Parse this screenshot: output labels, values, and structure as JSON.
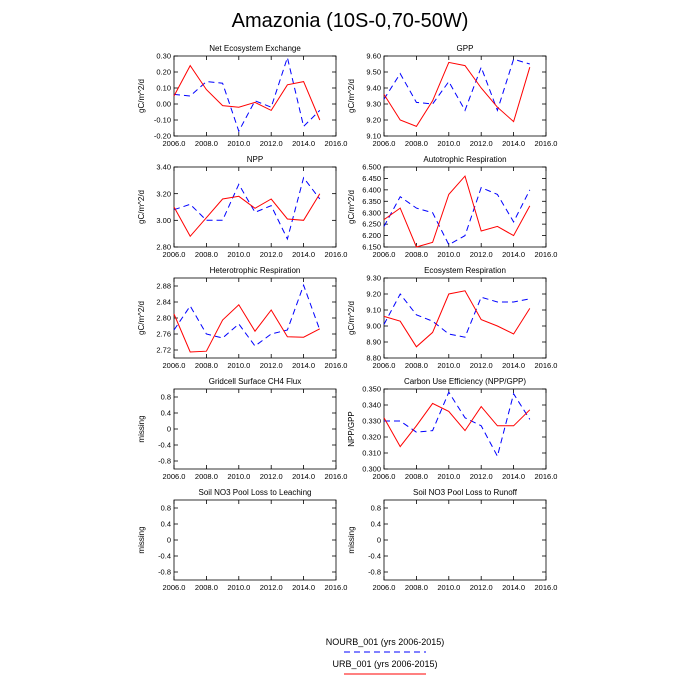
{
  "figure": {
    "title": "Amazonia (10S-0,70-50W)"
  },
  "legend": {
    "entries": [
      {
        "label": "NOURB_001 (yrs 2006-2015)",
        "color": "#0000ff",
        "dash": "dashed"
      },
      {
        "label": "URB_001 (yrs 2006-2015)",
        "color": "#ff0000",
        "dash": "solid"
      }
    ]
  },
  "chart_data": [
    {
      "type": "line",
      "title": "Net Ecosystem Exchange",
      "ylabel": "gC/m^2/d",
      "xlim": [
        2006,
        2016
      ],
      "ylim": [
        -0.2,
        0.3
      ],
      "xticks": [
        2006,
        2008,
        2010,
        2012,
        2014,
        2016
      ],
      "xticklabels": [
        "2006.0",
        "2008.0",
        "2010.0",
        "2012.0",
        "2014.0",
        "2016.0"
      ],
      "yticks": [
        -0.2,
        -0.1,
        0.0,
        0.1,
        0.2,
        0.3
      ],
      "yticklabels": [
        "-0.20",
        "-0.10",
        "0.00",
        "0.10",
        "0.20",
        "0.30"
      ],
      "x": [
        2006,
        2007,
        2008,
        2009,
        2010,
        2011,
        2012,
        2013,
        2014,
        2015
      ],
      "series": [
        {
          "name": "NOURB_001 (yrs 2006-2015)",
          "values": [
            0.06,
            0.05,
            0.14,
            0.13,
            -0.17,
            0.02,
            -0.02,
            0.29,
            -0.14,
            -0.04
          ]
        },
        {
          "name": "URB_001 (yrs 2006-2015)",
          "values": [
            0.05,
            0.24,
            0.09,
            -0.01,
            -0.02,
            0.01,
            -0.04,
            0.12,
            0.14,
            -0.1
          ]
        }
      ]
    },
    {
      "type": "line",
      "title": "GPP",
      "ylabel": "gC/m^2/d",
      "xlim": [
        2006,
        2016
      ],
      "ylim": [
        9.1,
        9.6
      ],
      "xticks": [
        2006,
        2008,
        2010,
        2012,
        2014,
        2016
      ],
      "xticklabels": [
        "2006.0",
        "2008.0",
        "2010.0",
        "2012.0",
        "2014.0",
        "2016.0"
      ],
      "yticks": [
        9.1,
        9.2,
        9.3,
        9.4,
        9.5,
        9.6
      ],
      "yticklabels": [
        "9.10",
        "9.20",
        "9.30",
        "9.40",
        "9.50",
        "9.60"
      ],
      "x": [
        2006,
        2007,
        2008,
        2009,
        2010,
        2011,
        2012,
        2013,
        2014,
        2015
      ],
      "series": [
        {
          "name": "NOURB_001 (yrs 2006-2015)",
          "values": [
            9.33,
            9.49,
            9.31,
            9.3,
            9.44,
            9.26,
            9.53,
            9.26,
            9.58,
            9.55
          ]
        },
        {
          "name": "URB_001 (yrs 2006-2015)",
          "values": [
            9.36,
            9.2,
            9.16,
            9.32,
            9.56,
            9.54,
            9.4,
            9.28,
            9.19,
            9.53
          ]
        }
      ]
    },
    {
      "type": "line",
      "title": "NPP",
      "ylabel": "gC/m^2/d",
      "xlim": [
        2006,
        2016
      ],
      "ylim": [
        2.8,
        3.4
      ],
      "xticks": [
        2006,
        2008,
        2010,
        2012,
        2014,
        2016
      ],
      "xticklabels": [
        "2006.0",
        "2008.0",
        "2010.0",
        "2012.0",
        "2014.0",
        "2016.0"
      ],
      "yticks": [
        2.8,
        3.0,
        3.2,
        3.4
      ],
      "yticklabels": [
        "2.80",
        "3.00",
        "3.20",
        "3.40"
      ],
      "x": [
        2006,
        2007,
        2008,
        2009,
        2010,
        2011,
        2012,
        2013,
        2014,
        2015
      ],
      "series": [
        {
          "name": "NOURB_001 (yrs 2006-2015)",
          "values": [
            3.08,
            3.12,
            3.0,
            3.0,
            3.27,
            3.06,
            3.11,
            2.86,
            3.32,
            3.16
          ]
        },
        {
          "name": "URB_001 (yrs 2006-2015)",
          "values": [
            3.1,
            2.88,
            3.02,
            3.16,
            3.18,
            3.09,
            3.16,
            3.01,
            3.0,
            3.2
          ]
        }
      ]
    },
    {
      "type": "line",
      "title": "Autotrophic Respiration",
      "ylabel": "gC/m^2/d",
      "xlim": [
        2006,
        2016
      ],
      "ylim": [
        6.15,
        6.5
      ],
      "xticks": [
        2006,
        2008,
        2010,
        2012,
        2014,
        2016
      ],
      "xticklabels": [
        "2006.0",
        "2008.0",
        "2010.0",
        "2012.0",
        "2014.0",
        "2016.0"
      ],
      "yticks": [
        6.15,
        6.2,
        6.25,
        6.3,
        6.35,
        6.4,
        6.45,
        6.5
      ],
      "yticklabels": [
        "6.150",
        "6.200",
        "6.250",
        "6.300",
        "6.350",
        "6.400",
        "6.450",
        "6.500"
      ],
      "x": [
        2006,
        2007,
        2008,
        2009,
        2010,
        2011,
        2012,
        2013,
        2014,
        2015
      ],
      "series": [
        {
          "name": "NOURB_001 (yrs 2006-2015)",
          "values": [
            6.24,
            6.37,
            6.32,
            6.3,
            6.16,
            6.2,
            6.41,
            6.38,
            6.26,
            6.4
          ]
        },
        {
          "name": "URB_001 (yrs 2006-2015)",
          "values": [
            6.27,
            6.32,
            6.15,
            6.17,
            6.38,
            6.46,
            6.22,
            6.24,
            6.2,
            6.33
          ]
        }
      ]
    },
    {
      "type": "line",
      "title": "Heterotrophic Respiration",
      "ylabel": "gC/m^2/d",
      "xlim": [
        2006,
        2016
      ],
      "ylim": [
        2.7,
        2.9
      ],
      "xticks": [
        2006,
        2008,
        2010,
        2012,
        2014,
        2016
      ],
      "xticklabels": [
        "2006.0",
        "2008.0",
        "2010.0",
        "2012.0",
        "2014.0",
        "2016.0"
      ],
      "yticks": [
        2.72,
        2.76,
        2.8,
        2.84,
        2.88
      ],
      "yticklabels": [
        "2.72",
        "2.76",
        "2.80",
        "2.84",
        "2.88"
      ],
      "x": [
        2006,
        2007,
        2008,
        2009,
        2010,
        2011,
        2012,
        2013,
        2014,
        2015
      ],
      "series": [
        {
          "name": "NOURB_001 (yrs 2006-2015)",
          "values": [
            2.77,
            2.83,
            2.76,
            2.75,
            2.785,
            2.73,
            2.76,
            2.77,
            2.882,
            2.77
          ]
        },
        {
          "name": "URB_001 (yrs 2006-2015)",
          "values": [
            2.81,
            2.715,
            2.717,
            2.795,
            2.833,
            2.767,
            2.82,
            2.753,
            2.752,
            2.773
          ]
        }
      ]
    },
    {
      "type": "line",
      "title": "Ecosystem Respiration",
      "ylabel": "gC/m^2/d",
      "xlim": [
        2006,
        2016
      ],
      "ylim": [
        8.8,
        9.3
      ],
      "xticks": [
        2006,
        2008,
        2010,
        2012,
        2014,
        2016
      ],
      "xticklabels": [
        "2006.0",
        "2008.0",
        "2010.0",
        "2012.0",
        "2014.0",
        "2016.0"
      ],
      "yticks": [
        8.8,
        8.9,
        9.0,
        9.1,
        9.2,
        9.3
      ],
      "yticklabels": [
        "8.80",
        "8.90",
        "9.00",
        "9.10",
        "9.20",
        "9.30"
      ],
      "x": [
        2006,
        2007,
        2008,
        2009,
        2010,
        2011,
        2012,
        2013,
        2014,
        2015
      ],
      "series": [
        {
          "name": "NOURB_001 (yrs 2006-2015)",
          "values": [
            9.01,
            9.2,
            9.07,
            9.03,
            8.95,
            8.93,
            9.18,
            9.15,
            9.15,
            9.17
          ]
        },
        {
          "name": "URB_001 (yrs 2006-2015)",
          "values": [
            9.06,
            9.03,
            8.87,
            8.96,
            9.2,
            9.22,
            9.04,
            9.0,
            8.95,
            9.11
          ]
        }
      ]
    },
    {
      "type": "line",
      "title": "Gridcell Surface CH4 Flux",
      "ylabel": "missing",
      "xlim": [
        2006,
        2016
      ],
      "ylim": [
        -1,
        1
      ],
      "xticks": [
        2006,
        2008,
        2010,
        2012,
        2014,
        2016
      ],
      "xticklabels": [
        "2006.0",
        "2008.0",
        "2010.0",
        "2012.0",
        "2014.0",
        "2016.0"
      ],
      "yticks": [
        -0.8,
        -0.4,
        0,
        0.4,
        0.8
      ],
      "yticklabels": [
        "-0.8",
        "-0.4",
        "0",
        "0.4",
        "0.8"
      ],
      "x": [],
      "series": []
    },
    {
      "type": "line",
      "title": "Carbon Use Efficiency (NPP/GPP)",
      "ylabel": "NPP/GPP",
      "xlim": [
        2006,
        2016
      ],
      "ylim": [
        0.3,
        0.35
      ],
      "xticks": [
        2006,
        2008,
        2010,
        2012,
        2014,
        2016
      ],
      "xticklabels": [
        "2006.0",
        "2008.0",
        "2010.0",
        "2012.0",
        "2014.0",
        "2016.0"
      ],
      "yticks": [
        0.3,
        0.31,
        0.32,
        0.33,
        0.34,
        0.35
      ],
      "yticklabels": [
        "0.300",
        "0.310",
        "0.320",
        "0.330",
        "0.340",
        "0.350"
      ],
      "x": [
        2006,
        2007,
        2008,
        2009,
        2010,
        2011,
        2012,
        2013,
        2014,
        2015
      ],
      "series": [
        {
          "name": "NOURB_001 (yrs 2006-2015)",
          "values": [
            0.33,
            0.33,
            0.323,
            0.324,
            0.348,
            0.332,
            0.327,
            0.308,
            0.347,
            0.331
          ]
        },
        {
          "name": "URB_001 (yrs 2006-2015)",
          "values": [
            0.332,
            0.314,
            0.327,
            0.341,
            0.336,
            0.324,
            0.339,
            0.327,
            0.327,
            0.337
          ]
        }
      ]
    },
    {
      "type": "line",
      "title": "Soil NO3 Pool Loss to Leaching",
      "ylabel": "missing",
      "xlim": [
        2006,
        2016
      ],
      "ylim": [
        -1,
        1
      ],
      "xticks": [
        2006,
        2008,
        2010,
        2012,
        2014,
        2016
      ],
      "xticklabels": [
        "2006.0",
        "2008.0",
        "2010.0",
        "2012.0",
        "2014.0",
        "2016.0"
      ],
      "yticks": [
        -0.8,
        -0.4,
        0,
        0.4,
        0.8
      ],
      "yticklabels": [
        "-0.8",
        "-0.4",
        "0",
        "0.4",
        "0.8"
      ],
      "x": [],
      "series": []
    },
    {
      "type": "line",
      "title": "Soil NO3 Pool Loss to Runoff",
      "ylabel": "missing",
      "xlim": [
        2006,
        2016
      ],
      "ylim": [
        -1,
        1
      ],
      "xticks": [
        2006,
        2008,
        2010,
        2012,
        2014,
        2016
      ],
      "xticklabels": [
        "2006.0",
        "2008.0",
        "2010.0",
        "2012.0",
        "2014.0",
        "2016.0"
      ],
      "yticks": [
        -0.8,
        -0.4,
        0,
        0.4,
        0.8
      ],
      "yticklabels": [
        "-0.8",
        "-0.4",
        "0",
        "0.4",
        "0.8"
      ],
      "x": [],
      "series": []
    }
  ]
}
